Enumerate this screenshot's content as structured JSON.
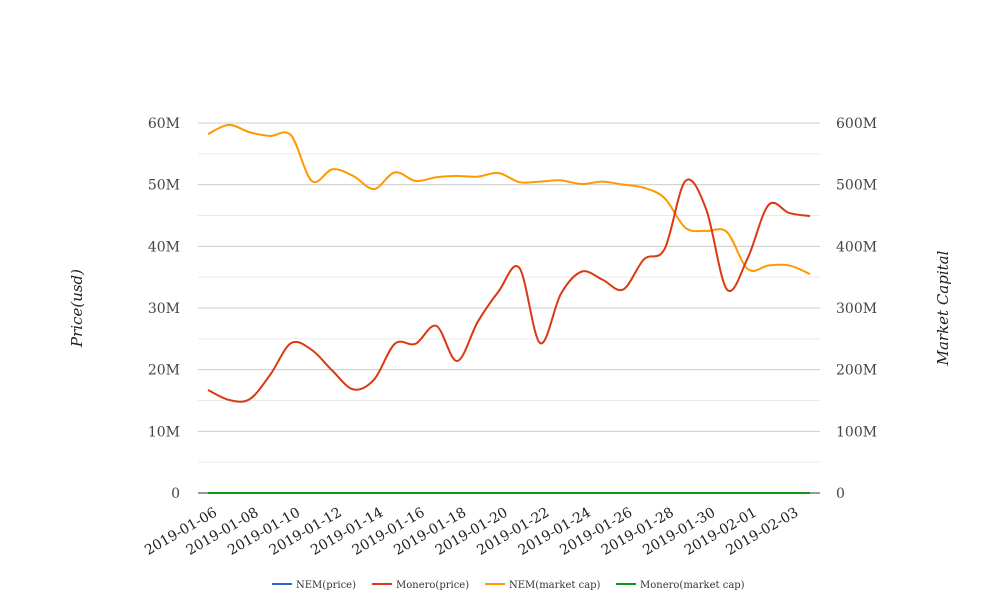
{
  "chart_data": {
    "type": "line",
    "title": "",
    "x": [
      "2019-01-06",
      "2019-01-07",
      "2019-01-08",
      "2019-01-09",
      "2019-01-10",
      "2019-01-11",
      "2019-01-12",
      "2019-01-13",
      "2019-01-14",
      "2019-01-15",
      "2019-01-16",
      "2019-01-17",
      "2019-01-18",
      "2019-01-19",
      "2019-01-20",
      "2019-01-21",
      "2019-01-22",
      "2019-01-23",
      "2019-01-24",
      "2019-01-25",
      "2019-01-26",
      "2019-01-27",
      "2019-01-28",
      "2019-01-29",
      "2019-01-30",
      "2019-01-31",
      "2019-02-01",
      "2019-02-02",
      "2019-02-03",
      "2019-02-04"
    ],
    "x_tick_labels": [
      "2019-01-06",
      "2019-01-08",
      "2019-01-10",
      "2019-01-12",
      "2019-01-14",
      "2019-01-16",
      "2019-01-18",
      "2019-01-20",
      "2019-01-22",
      "2019-01-24",
      "2019-01-26",
      "2019-01-28",
      "2019-01-30",
      "2019-02-01",
      "2019-02-03"
    ],
    "ylabel_left": "Price(usd)",
    "ylabel_right": "Market Capital",
    "y_left": {
      "ticks": [
        "0",
        "10M",
        "20M",
        "30M",
        "40M",
        "50M",
        "60M"
      ],
      "lim": [
        0,
        60000000
      ]
    },
    "y_right": {
      "ticks": [
        "0",
        "100M",
        "200M",
        "300M",
        "400M",
        "500M",
        "600M"
      ],
      "lim": [
        0,
        600000000
      ]
    },
    "grid": true,
    "legend_position": "bottom",
    "series": [
      {
        "name": "NEM(price)",
        "axis": "left",
        "color": "#3366cc",
        "values": [
          0.05,
          0.05,
          0.05,
          0.05,
          0.05,
          0.05,
          0.05,
          0.05,
          0.05,
          0.05,
          0.05,
          0.05,
          0.05,
          0.05,
          0.05,
          0.05,
          0.05,
          0.05,
          0.05,
          0.05,
          0.05,
          0.05,
          0.05,
          0.05,
          0.05,
          0.05,
          0.05,
          0.05,
          0.05,
          0.05
        ]
      },
      {
        "name": "Monero(price)",
        "axis": "left",
        "color": "#dc3912",
        "values": [
          16700000,
          15100000,
          15200000,
          19200000,
          24300000,
          23200000,
          19800000,
          16800000,
          18400000,
          24200000,
          24200000,
          27100000,
          21400000,
          27800000,
          32700000,
          36500000,
          24300000,
          32300000,
          35900000,
          34600000,
          33000000,
          37900000,
          39600000,
          50600000,
          46000000,
          33000000,
          38100000,
          46700000,
          45400000,
          44900000
        ]
      },
      {
        "name": "NEM(market cap)",
        "axis": "right",
        "color": "#ff9900",
        "values": [
          582000000,
          597000000,
          585000000,
          579000000,
          580000000,
          506000000,
          525000000,
          514000000,
          493000000,
          520000000,
          506000000,
          512000000,
          514000000,
          513000000,
          519000000,
          504000000,
          505000000,
          507000000,
          501000000,
          505000000,
          500000000,
          495000000,
          478000000,
          430000000,
          425000000,
          423000000,
          363000000,
          369000000,
          369000000,
          355000000
        ]
      },
      {
        "name": "Monero(market cap)",
        "axis": "right",
        "color": "#109618",
        "values": [
          0,
          0,
          0,
          0,
          0,
          0,
          0,
          0,
          0,
          0,
          0,
          0,
          0,
          0,
          0,
          0,
          0,
          0,
          0,
          0,
          0,
          0,
          0,
          0,
          0,
          0,
          0,
          0,
          0,
          0
        ]
      }
    ]
  }
}
